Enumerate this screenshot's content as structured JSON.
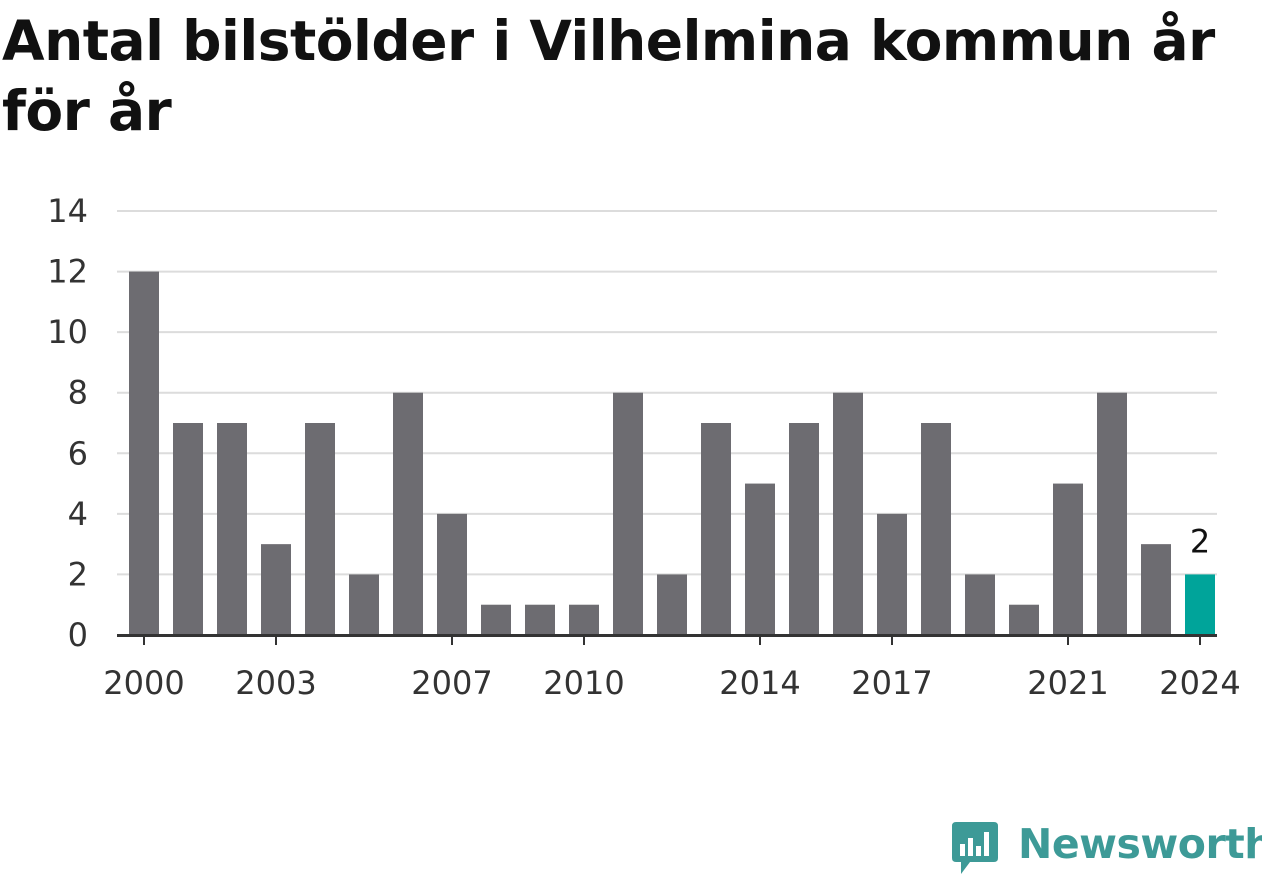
{
  "title": "Antal bilstölder i Vilhelmina kommun år för år",
  "brand": {
    "name": "Newsworthy",
    "color": "#3d9a97",
    "icon": "bar-chart-speech-bubble-icon"
  },
  "colors": {
    "bar": "#6d6c71",
    "highlight": "#00a49a",
    "grid": "#dcdcdc",
    "axis": "#333333",
    "text": "#333333"
  },
  "chart_data": {
    "type": "bar",
    "title": "Antal bilstölder i Vilhelmina kommun år för år",
    "xlabel": "",
    "ylabel": "",
    "ylim": [
      0,
      14
    ],
    "yticks": [
      0,
      2,
      4,
      6,
      8,
      10,
      12,
      14
    ],
    "xtick_labels": [
      "2000",
      "2003",
      "2007",
      "2010",
      "2014",
      "2017",
      "2021",
      "2024"
    ],
    "categories": [
      "2000",
      "2001",
      "2002",
      "2003",
      "2004",
      "2005",
      "2006",
      "2007",
      "2008",
      "2009",
      "2010",
      "2011",
      "2012",
      "2013",
      "2014",
      "2015",
      "2016",
      "2017",
      "2018",
      "2019",
      "2020",
      "2021",
      "2022",
      "2023",
      "2024"
    ],
    "values": [
      12,
      7,
      7,
      3,
      7,
      2,
      8,
      4,
      1,
      1,
      1,
      8,
      2,
      7,
      5,
      7,
      8,
      4,
      7,
      2,
      1,
      5,
      8,
      3,
      2
    ],
    "highlight": {
      "category": "2024",
      "label": "2"
    },
    "grid": true,
    "legend": "none"
  }
}
